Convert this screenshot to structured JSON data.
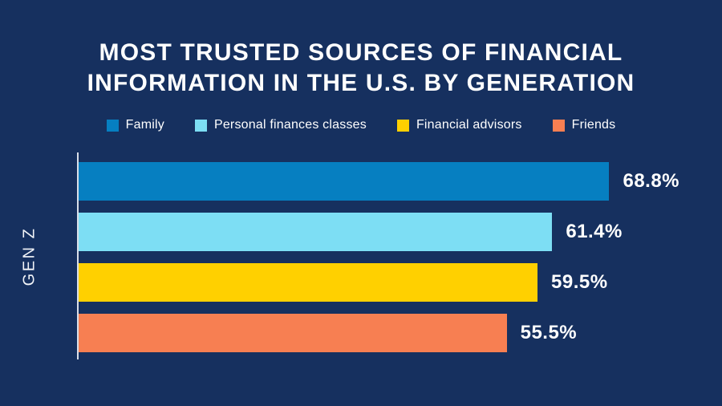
{
  "header": {
    "title_line1": "MOST TRUSTED SOURCES OF FINANCIAL",
    "title_line2": "INFORMATION IN THE U.S. BY GENERATION"
  },
  "colors": {
    "background": "#16305F",
    "axis_line": "#D9DEE8",
    "text": "#FFFFFF"
  },
  "chart_data": {
    "type": "bar",
    "orientation": "horizontal",
    "title": "MOST TRUSTED SOURCES OF FINANCIAL INFORMATION IN THE U.S. BY GENERATION",
    "group_label": "GEN Z",
    "xlim": [
      0,
      83
    ],
    "grid": false,
    "legend_position": "top",
    "series": [
      {
        "name": "Family",
        "value": 68.8,
        "label": "68.8%",
        "color": "#067FC1"
      },
      {
        "name": "Personal finances classes",
        "value": 61.4,
        "label": "61.4%",
        "color": "#7DDEF4"
      },
      {
        "name": "Financial advisors",
        "value": 59.5,
        "label": "59.5%",
        "color": "#FFD000"
      },
      {
        "name": "Friends",
        "value": 55.5,
        "label": "55.5%",
        "color": "#F77F52"
      }
    ]
  }
}
